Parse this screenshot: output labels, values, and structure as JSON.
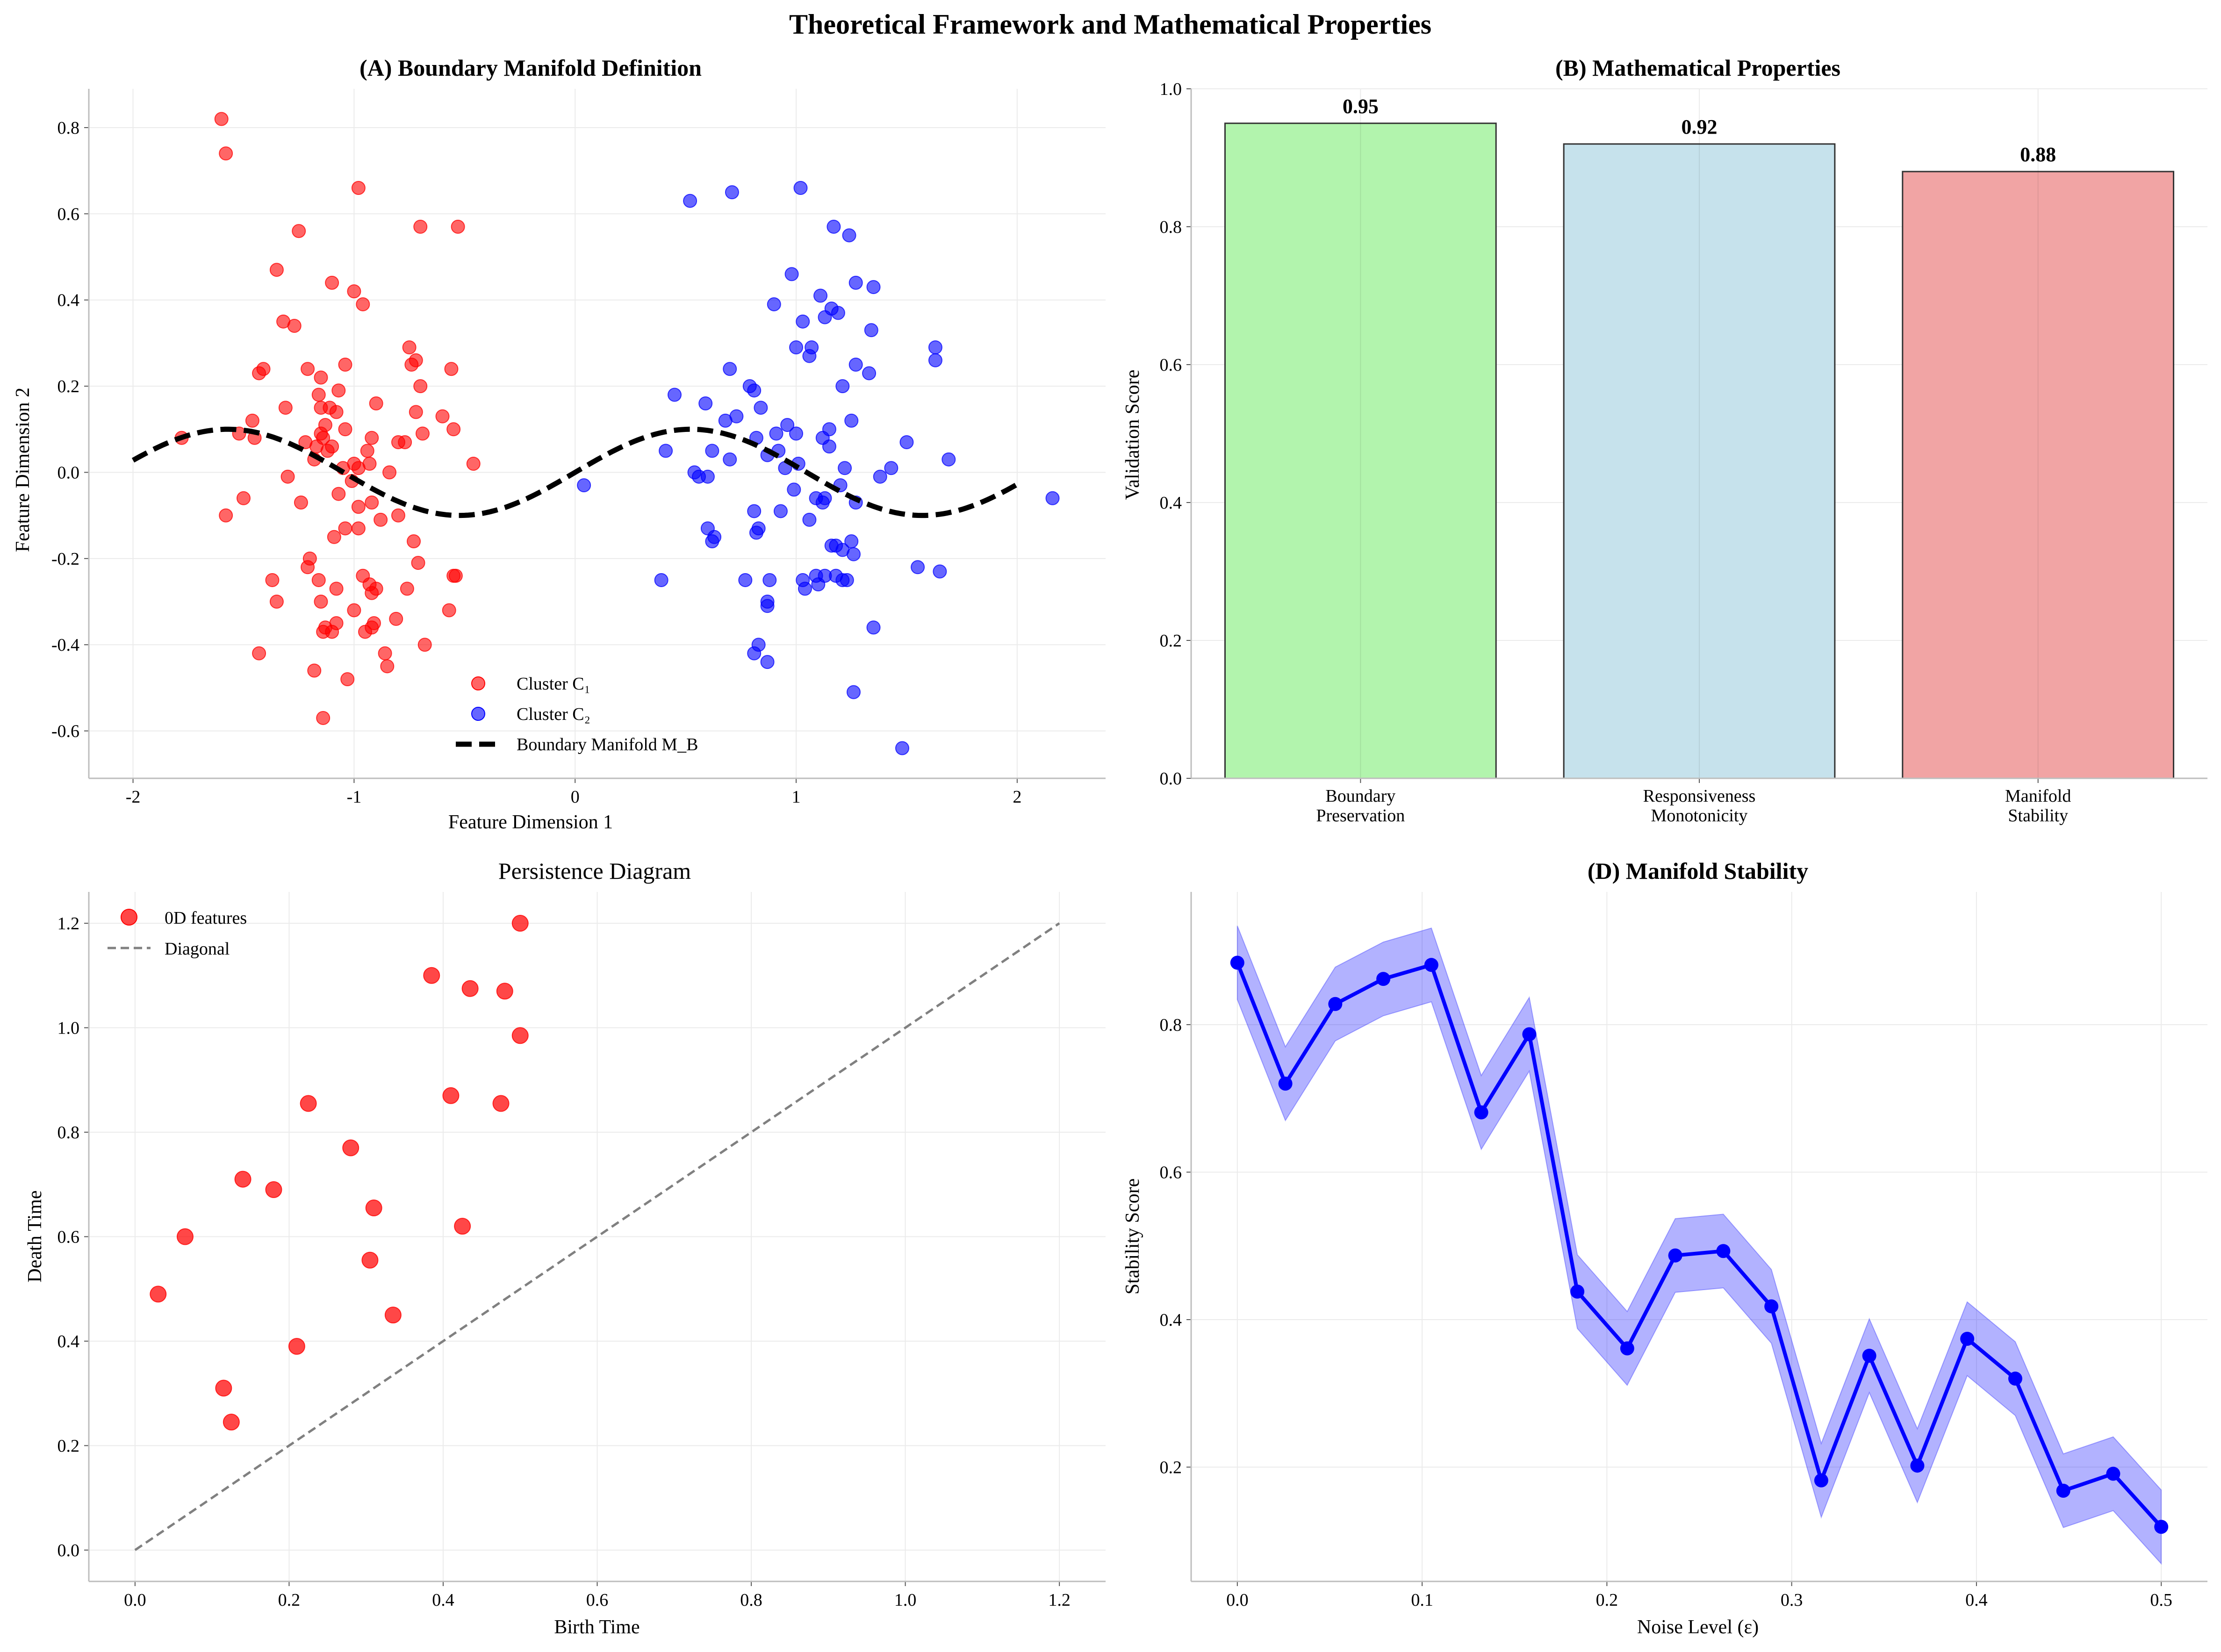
{
  "figure": {
    "title": "Theoretical Framework and Mathematical Properties"
  },
  "chart_data": [
    {
      "panel": "A",
      "type": "scatter",
      "title": "(A) Boundary Manifold Definition",
      "xlabel": "Feature Dimension 1",
      "ylabel": "Feature Dimension 2",
      "xlim": [
        -2.2,
        2.4
      ],
      "ylim": [
        -0.71,
        0.89
      ],
      "xticks": [
        -2,
        -1,
        0,
        1,
        2
      ],
      "yticks": [
        -0.6,
        -0.4,
        -0.2,
        0.0,
        0.2,
        0.4,
        0.6,
        0.8
      ],
      "grid": true,
      "legend_position": "lower-center",
      "series": [
        {
          "name": "Cluster C₁",
          "color": "#ff0000",
          "points": [
            [
              -1.6,
              0.82
            ],
            [
              -1.58,
              0.74
            ],
            [
              -0.98,
              0.66
            ],
            [
              -1.25,
              0.56
            ],
            [
              -0.7,
              0.57
            ],
            [
              -0.53,
              0.57
            ],
            [
              -1.35,
              0.47
            ],
            [
              -1.1,
              0.44
            ],
            [
              -1.0,
              0.42
            ],
            [
              -0.96,
              0.39
            ],
            [
              -1.32,
              0.35
            ],
            [
              -1.27,
              0.34
            ],
            [
              -0.75,
              0.29
            ],
            [
              -1.41,
              0.24
            ],
            [
              -1.43,
              0.23
            ],
            [
              -1.21,
              0.24
            ],
            [
              -1.04,
              0.25
            ],
            [
              -0.72,
              0.26
            ],
            [
              -0.74,
              0.25
            ],
            [
              -0.56,
              0.24
            ],
            [
              -1.15,
              0.22
            ],
            [
              -1.07,
              0.19
            ],
            [
              -0.7,
              0.2
            ],
            [
              -1.16,
              0.18
            ],
            [
              -1.31,
              0.15
            ],
            [
              -1.11,
              0.15
            ],
            [
              -1.15,
              0.15
            ],
            [
              -1.08,
              0.14
            ],
            [
              -0.72,
              0.14
            ],
            [
              -0.6,
              0.13
            ],
            [
              -0.55,
              0.1
            ],
            [
              -1.46,
              0.12
            ],
            [
              -1.13,
              0.11
            ],
            [
              -1.04,
              0.1
            ],
            [
              -0.9,
              0.16
            ],
            [
              -0.69,
              0.09
            ],
            [
              -1.78,
              0.08
            ],
            [
              -1.52,
              0.09
            ],
            [
              -1.45,
              0.08
            ],
            [
              -1.15,
              0.09
            ],
            [
              -1.14,
              0.08
            ],
            [
              -1.1,
              0.06
            ],
            [
              -0.92,
              0.08
            ],
            [
              -0.8,
              0.07
            ],
            [
              -0.77,
              0.07
            ],
            [
              -1.22,
              0.07
            ],
            [
              -1.17,
              0.06
            ],
            [
              -1.12,
              0.05
            ],
            [
              -0.94,
              0.05
            ],
            [
              -1.18,
              0.03
            ],
            [
              -1.0,
              0.02
            ],
            [
              -0.98,
              0.01
            ],
            [
              -0.93,
              0.02
            ],
            [
              -0.46,
              0.02
            ],
            [
              -1.3,
              -0.01
            ],
            [
              -1.05,
              0.01
            ],
            [
              -1.01,
              -0.02
            ],
            [
              -0.84,
              0.0
            ],
            [
              -1.5,
              -0.06
            ],
            [
              -1.24,
              -0.07
            ],
            [
              -1.07,
              -0.05
            ],
            [
              -0.92,
              -0.07
            ],
            [
              -0.98,
              -0.08
            ],
            [
              -1.58,
              -0.1
            ],
            [
              -0.8,
              -0.1
            ],
            [
              -1.04,
              -0.13
            ],
            [
              -0.98,
              -0.13
            ],
            [
              -0.88,
              -0.11
            ],
            [
              -1.09,
              -0.15
            ],
            [
              -0.73,
              -0.16
            ],
            [
              -1.2,
              -0.2
            ],
            [
              -1.21,
              -0.22
            ],
            [
              -0.96,
              -0.24
            ],
            [
              -0.93,
              -0.26
            ],
            [
              -0.71,
              -0.21
            ],
            [
              -0.54,
              -0.24
            ],
            [
              -0.55,
              -0.24
            ],
            [
              -1.37,
              -0.25
            ],
            [
              -1.16,
              -0.25
            ],
            [
              -1.08,
              -0.27
            ],
            [
              -0.92,
              -0.28
            ],
            [
              -0.9,
              -0.27
            ],
            [
              -0.76,
              -0.27
            ],
            [
              -1.35,
              -0.3
            ],
            [
              -1.15,
              -0.3
            ],
            [
              -1.0,
              -0.32
            ],
            [
              -0.57,
              -0.32
            ],
            [
              -1.13,
              -0.36
            ],
            [
              -1.08,
              -0.35
            ],
            [
              -0.91,
              -0.35
            ],
            [
              -0.92,
              -0.36
            ],
            [
              -0.95,
              -0.37
            ],
            [
              -0.81,
              -0.34
            ],
            [
              -1.14,
              -0.37
            ],
            [
              -1.1,
              -0.37
            ],
            [
              -0.68,
              -0.4
            ],
            [
              -1.43,
              -0.42
            ],
            [
              -0.86,
              -0.42
            ],
            [
              -0.85,
              -0.45
            ],
            [
              -1.18,
              -0.46
            ],
            [
              -1.03,
              -0.48
            ],
            [
              -1.14,
              -0.57
            ]
          ]
        },
        {
          "name": "Cluster C₂",
          "color": "#0000ff",
          "points": [
            [
              1.02,
              0.66
            ],
            [
              0.71,
              0.65
            ],
            [
              0.52,
              0.63
            ],
            [
              1.17,
              0.57
            ],
            [
              1.24,
              0.55
            ],
            [
              0.98,
              0.46
            ],
            [
              1.27,
              0.44
            ],
            [
              1.35,
              0.43
            ],
            [
              0.9,
              0.39
            ],
            [
              1.11,
              0.41
            ],
            [
              1.16,
              0.38
            ],
            [
              1.19,
              0.37
            ],
            [
              1.03,
              0.35
            ],
            [
              1.13,
              0.36
            ],
            [
              1.34,
              0.33
            ],
            [
              1.63,
              0.29
            ],
            [
              1.0,
              0.29
            ],
            [
              1.07,
              0.29
            ],
            [
              1.06,
              0.27
            ],
            [
              1.27,
              0.25
            ],
            [
              1.63,
              0.26
            ],
            [
              1.33,
              0.23
            ],
            [
              0.7,
              0.24
            ],
            [
              1.21,
              0.2
            ],
            [
              0.79,
              0.2
            ],
            [
              0.45,
              0.18
            ],
            [
              0.68,
              0.12
            ],
            [
              0.81,
              0.19
            ],
            [
              0.59,
              0.16
            ],
            [
              0.84,
              0.15
            ],
            [
              0.73,
              0.13
            ],
            [
              0.96,
              0.11
            ],
            [
              1.15,
              0.1
            ],
            [
              1.25,
              0.12
            ],
            [
              1.5,
              0.07
            ],
            [
              0.41,
              0.05
            ],
            [
              0.82,
              0.08
            ],
            [
              0.91,
              0.09
            ],
            [
              1.0,
              0.09
            ],
            [
              1.12,
              0.08
            ],
            [
              0.87,
              0.04
            ],
            [
              0.92,
              0.05
            ],
            [
              0.62,
              0.05
            ],
            [
              0.7,
              0.03
            ],
            [
              1.15,
              0.06
            ],
            [
              1.69,
              0.03
            ],
            [
              1.43,
              0.01
            ],
            [
              1.01,
              0.02
            ],
            [
              0.95,
              0.01
            ],
            [
              1.22,
              0.01
            ],
            [
              0.6,
              -0.01
            ],
            [
              0.54,
              0.0
            ],
            [
              0.56,
              -0.01
            ],
            [
              1.38,
              -0.01
            ],
            [
              0.04,
              -0.03
            ],
            [
              0.99,
              -0.04
            ],
            [
              1.2,
              -0.03
            ],
            [
              1.13,
              -0.06
            ],
            [
              1.12,
              -0.07
            ],
            [
              1.09,
              -0.06
            ],
            [
              1.27,
              -0.07
            ],
            [
              2.16,
              -0.06
            ],
            [
              0.81,
              -0.09
            ],
            [
              0.93,
              -0.09
            ],
            [
              1.06,
              -0.11
            ],
            [
              0.6,
              -0.13
            ],
            [
              0.62,
              -0.16
            ],
            [
              0.63,
              -0.15
            ],
            [
              0.83,
              -0.13
            ],
            [
              0.82,
              -0.14
            ],
            [
              1.25,
              -0.16
            ],
            [
              1.18,
              -0.17
            ],
            [
              1.16,
              -0.17
            ],
            [
              1.21,
              -0.18
            ],
            [
              1.26,
              -0.19
            ],
            [
              1.55,
              -0.22
            ],
            [
              1.65,
              -0.23
            ],
            [
              1.09,
              -0.24
            ],
            [
              1.18,
              -0.24
            ],
            [
              1.21,
              -0.25
            ],
            [
              1.23,
              -0.25
            ],
            [
              1.13,
              -0.24
            ],
            [
              1.03,
              -0.25
            ],
            [
              1.04,
              -0.27
            ],
            [
              1.1,
              -0.26
            ],
            [
              0.77,
              -0.25
            ],
            [
              0.88,
              -0.25
            ],
            [
              0.39,
              -0.25
            ],
            [
              0.87,
              -0.3
            ],
            [
              0.87,
              -0.31
            ],
            [
              1.35,
              -0.36
            ],
            [
              0.83,
              -0.4
            ],
            [
              0.81,
              -0.42
            ],
            [
              0.87,
              -0.44
            ],
            [
              1.26,
              -0.51
            ],
            [
              1.48,
              -0.64
            ]
          ]
        },
        {
          "name": "Boundary Manifold M_B",
          "type": "line",
          "color": "#000000",
          "style": "dashed",
          "function": "0.1*sin(3x)",
          "x_range": [
            -2,
            2
          ]
        }
      ]
    },
    {
      "panel": "B",
      "type": "bar",
      "title": "(B) Mathematical Properties",
      "ylabel": "Validation Score",
      "ylim": [
        0,
        1.0
      ],
      "yticks": [
        0.0,
        0.2,
        0.4,
        0.6,
        0.8,
        1.0
      ],
      "grid": true,
      "categories": [
        [
          "Boundary",
          "Preservation"
        ],
        [
          "Responsiveness",
          "Monotonicity"
        ],
        [
          "Manifold",
          "Stability"
        ]
      ],
      "values": [
        0.95,
        0.92,
        0.88
      ],
      "value_labels": [
        "0.95",
        "0.92",
        "0.88"
      ],
      "colors": [
        "#b2f4ad",
        "#c6e2ec",
        "#f1a4a4"
      ]
    },
    {
      "panel": "C",
      "type": "scatter",
      "title": "Persistence Diagram",
      "xlabel": "Birth Time",
      "ylabel": "Death Time",
      "xlim": [
        -0.06,
        1.26
      ],
      "ylim": [
        -0.06,
        1.26
      ],
      "xticks": [
        0.0,
        0.2,
        0.4,
        0.6,
        0.8,
        1.0,
        1.2
      ],
      "yticks": [
        0.0,
        0.2,
        0.4,
        0.6,
        0.8,
        1.0,
        1.2
      ],
      "grid": true,
      "legend_position": "top-left",
      "series": [
        {
          "name": "0D features",
          "color": "#ff0000",
          "points": [
            [
              0.03,
              0.49
            ],
            [
              0.065,
              0.6
            ],
            [
              0.115,
              0.31
            ],
            [
              0.125,
              0.245
            ],
            [
              0.14,
              0.71
            ],
            [
              0.18,
              0.69
            ],
            [
              0.21,
              0.39
            ],
            [
              0.225,
              0.855
            ],
            [
              0.28,
              0.77
            ],
            [
              0.305,
              0.555
            ],
            [
              0.31,
              0.655
            ],
            [
              0.335,
              0.45
            ],
            [
              0.385,
              1.1
            ],
            [
              0.41,
              0.87
            ],
            [
              0.425,
              0.62
            ],
            [
              0.435,
              1.075
            ],
            [
              0.475,
              0.855
            ],
            [
              0.48,
              1.07
            ],
            [
              0.5,
              0.985
            ],
            [
              0.5,
              1.2
            ]
          ]
        },
        {
          "name": "Diagonal",
          "type": "line",
          "color": "#808080",
          "style": "dashed",
          "points": [
            [
              0,
              0
            ],
            [
              1.2,
              1.2
            ]
          ]
        }
      ]
    },
    {
      "panel": "D",
      "type": "line",
      "title": "(D) Manifold Stability",
      "xlabel": "Noise Level (ε)",
      "ylabel": "Stability Score",
      "xlim": [
        -0.025,
        0.525
      ],
      "ylim": [
        0.045,
        0.98
      ],
      "xticks": [
        0.0,
        0.1,
        0.2,
        0.3,
        0.4,
        0.5
      ],
      "yticks": [
        0.2,
        0.4,
        0.6,
        0.8
      ],
      "grid": true,
      "band_halfwidth": 0.05,
      "color": "#0000ff",
      "x": [
        0.0,
        0.026,
        0.053,
        0.079,
        0.105,
        0.132,
        0.158,
        0.184,
        0.211,
        0.237,
        0.263,
        0.289,
        0.316,
        0.342,
        0.368,
        0.395,
        0.421,
        0.447,
        0.474,
        0.5
      ],
      "values": [
        0.884,
        0.72,
        0.828,
        0.862,
        0.881,
        0.681,
        0.787,
        0.438,
        0.361,
        0.487,
        0.493,
        0.418,
        0.182,
        0.351,
        0.202,
        0.374,
        0.32,
        0.168,
        0.191,
        0.119
      ]
    }
  ]
}
